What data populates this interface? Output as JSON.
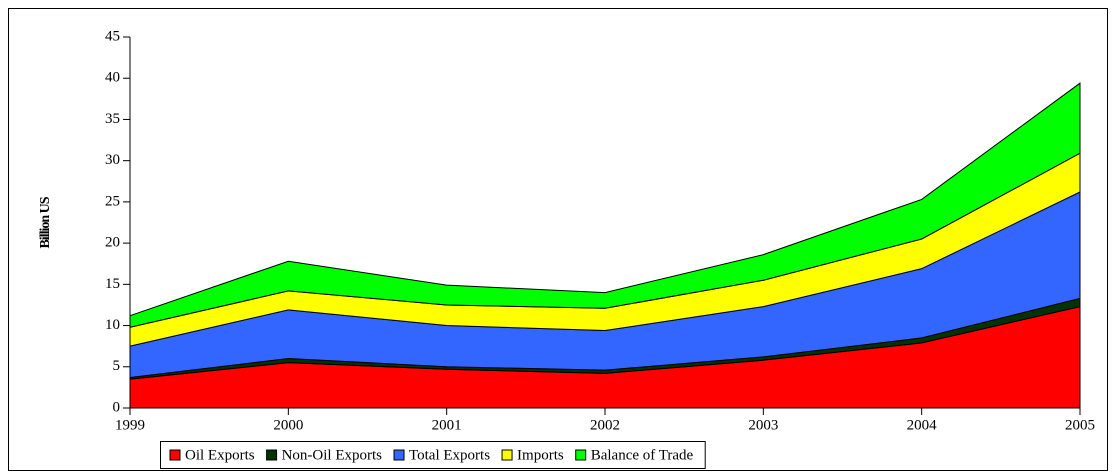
{
  "chart_data": {
    "type": "stacked-area",
    "y_label": "Billion US",
    "categories": [
      "1999",
      "2000",
      "2001",
      "2002",
      "2003",
      "2004",
      "2005"
    ],
    "series": [
      {
        "name": "Oil Exports",
        "color": "#ff0000",
        "values": [
          3.5,
          5.5,
          4.7,
          4.2,
          5.8,
          7.9,
          12.3
        ]
      },
      {
        "name": "Non-Oil Exports",
        "color": "#003300",
        "values": [
          0.2,
          0.5,
          0.3,
          0.4,
          0.4,
          0.6,
          1.0
        ]
      },
      {
        "name": "Total Exports",
        "color": "#3366ff",
        "values": [
          3.8,
          5.9,
          5.0,
          4.8,
          6.1,
          8.4,
          12.9
        ]
      },
      {
        "name": "Imports",
        "color": "#ffff00",
        "values": [
          2.3,
          2.3,
          2.5,
          2.7,
          3.2,
          3.6,
          4.7
        ]
      },
      {
        "name": "Balance of Trade",
        "color": "#00ff00",
        "values": [
          1.4,
          3.6,
          2.4,
          1.9,
          3.1,
          4.8,
          8.5
        ]
      }
    ],
    "ylim": [
      0,
      45
    ],
    "yticks": [
      0,
      5,
      10,
      15,
      20,
      25,
      30,
      35,
      40,
      45
    ],
    "legend": "bottom"
  }
}
